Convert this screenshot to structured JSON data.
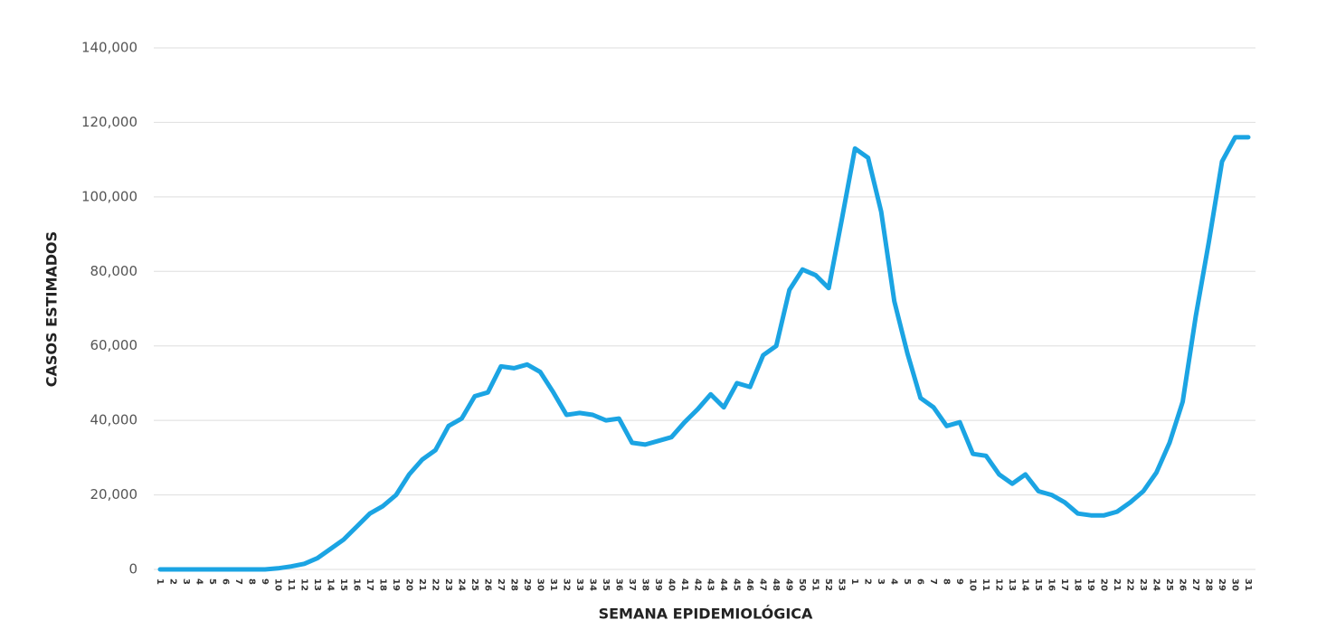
{
  "chart_data": {
    "type": "line",
    "x_label": "SEMANA EPIDEMIOLÓGICA",
    "y_label": "CASOS ESTIMADOS",
    "categories": [
      "1",
      "2",
      "3",
      "4",
      "5",
      "6",
      "7",
      "8",
      "9",
      "10",
      "11",
      "12",
      "13",
      "14",
      "15",
      "16",
      "17",
      "18",
      "19",
      "20",
      "21",
      "22",
      "23",
      "24",
      "25",
      "26",
      "27",
      "28",
      "29",
      "30",
      "31",
      "32",
      "33",
      "34",
      "35",
      "36",
      "37",
      "38",
      "39",
      "40",
      "41",
      "42",
      "43",
      "44",
      "45",
      "46",
      "47",
      "48",
      "49",
      "50",
      "51",
      "52",
      "53",
      "1",
      "2",
      "3",
      "4",
      "5",
      "6",
      "7",
      "8",
      "9",
      "10",
      "11",
      "12",
      "13",
      "14",
      "15",
      "16",
      "17",
      "18",
      "19",
      "20",
      "21",
      "22",
      "23",
      "24",
      "25",
      "26",
      "27",
      "28",
      "29",
      "30",
      "31"
    ],
    "series": [
      {
        "color": "#1ba4e3",
        "values": [
          0,
          0,
          0,
          0,
          0,
          0,
          0,
          0,
          0,
          300,
          800,
          1500,
          3000,
          5500,
          8000,
          11500,
          15000,
          17000,
          20000,
          25500,
          29500,
          32000,
          38500,
          40500,
          46500,
          47500,
          54500,
          54000,
          55000,
          53000,
          47500,
          41500,
          42000,
          41500,
          40000,
          40500,
          34000,
          33500,
          34500,
          35500,
          39500,
          43000,
          47000,
          43500,
          50000,
          49000,
          57500,
          60000,
          75000,
          80500,
          79000,
          75500,
          94000,
          113000,
          110500,
          96000,
          72000,
          58000,
          46000,
          43500,
          38500,
          39500,
          31000,
          30500,
          25500,
          23000,
          25500,
          21000,
          20000,
          18000,
          15000,
          14500,
          14500,
          15500,
          18000,
          21000,
          26000,
          34000,
          45000,
          68000,
          88000,
          109500,
          116000,
          116000
        ]
      }
    ],
    "ylim": [
      0,
      140000
    ],
    "yticks": [
      0,
      {
        "value": 20000,
        "label": "20,000"
      },
      {
        "value": 40000,
        "label": "40,000"
      },
      {
        "value": 60000,
        "label": "60,000"
      },
      {
        "value": 80000,
        "label": "80,000"
      },
      {
        "value": 100000,
        "label": "100,000"
      },
      {
        "value": 120000,
        "label": "120,000"
      },
      {
        "value": 140000,
        "label": "140,000"
      }
    ],
    "grid": true
  }
}
